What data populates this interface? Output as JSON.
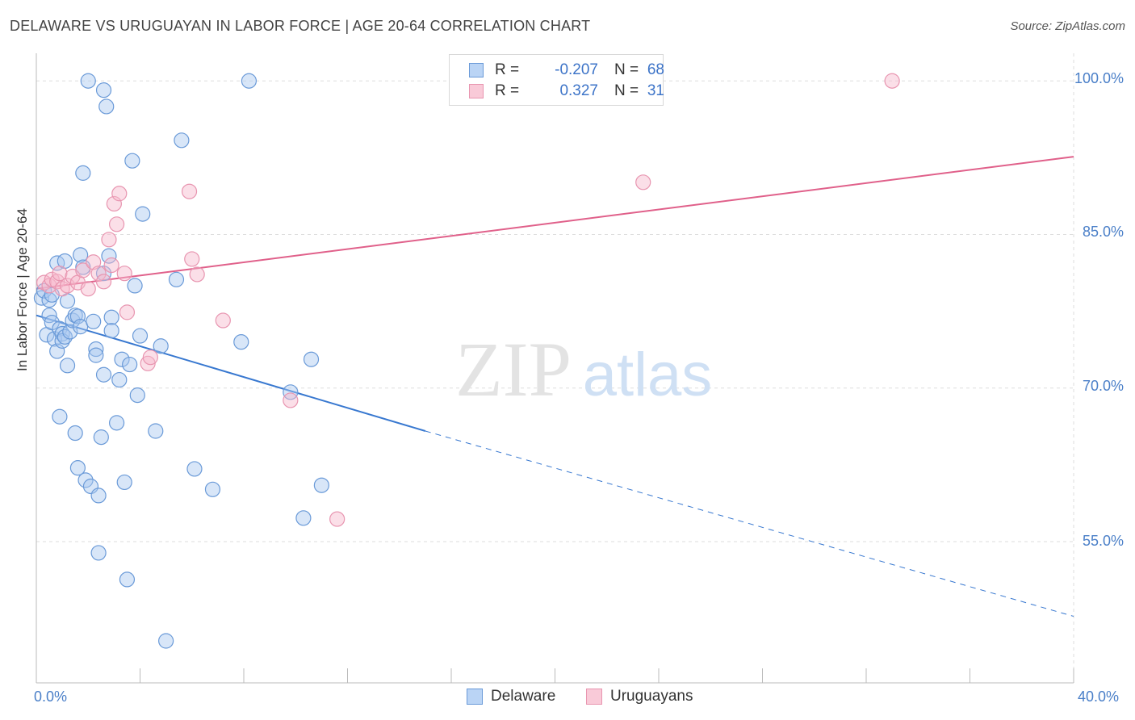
{
  "title": "DELAWARE VS URUGUAYAN IN LABOR FORCE | AGE 20-64 CORRELATION CHART",
  "source": "Source: ZipAtlas.com",
  "watermark": {
    "zip": "ZIP",
    "atlas": "atlas"
  },
  "colors": {
    "delaware_fill": "#a9c8f0",
    "delaware_stroke": "#6a9ad8",
    "delaware_line": "#3878d0",
    "uruguayan_fill": "#f7b8cc",
    "uruguayan_stroke": "#e895b0",
    "uruguayan_line": "#e0608a",
    "tick_text": "#4a7fc8",
    "grid": "#dddddd"
  },
  "stats": {
    "delaware": {
      "r_label": "R =",
      "r_value": "-0.207",
      "n_label": "N =",
      "n_value": "68"
    },
    "uruguayan": {
      "r_label": "R =",
      "r_value": "0.327",
      "n_label": "N =",
      "n_value": "31"
    }
  },
  "chart_data": {
    "type": "scatter",
    "title": "DELAWARE VS URUGUAYAN IN LABOR FORCE | AGE 20-64 CORRELATION CHART",
    "xlabel": "",
    "ylabel": "In Labor Force | Age 20-64",
    "xlim": [
      0,
      40
    ],
    "ylim": [
      41.2,
      102.7
    ],
    "x_tick_labels": [
      "0.0%",
      "40.0%"
    ],
    "y_ticks": [
      55,
      70,
      85,
      100
    ],
    "y_tick_labels": [
      "55.0%",
      "70.0%",
      "85.0%",
      "100.0%"
    ],
    "grid": true,
    "legend_position": "bottom-center",
    "series": [
      {
        "name": "Delaware",
        "points": [
          [
            0.2,
            78.8
          ],
          [
            0.3,
            79.5
          ],
          [
            0.4,
            75.2
          ],
          [
            0.5,
            78.6
          ],
          [
            0.5,
            77.1
          ],
          [
            0.6,
            79.1
          ],
          [
            0.6,
            76.4
          ],
          [
            0.7,
            74.8
          ],
          [
            0.8,
            82.2
          ],
          [
            0.8,
            73.6
          ],
          [
            0.9,
            75.8
          ],
          [
            0.9,
            67.2
          ],
          [
            1.0,
            75.3
          ],
          [
            1.0,
            74.6
          ],
          [
            1.1,
            75.0
          ],
          [
            1.1,
            82.4
          ],
          [
            1.2,
            78.5
          ],
          [
            1.2,
            72.2
          ],
          [
            1.3,
            75.5
          ],
          [
            1.4,
            76.6
          ],
          [
            1.5,
            77.1
          ],
          [
            1.5,
            65.6
          ],
          [
            1.6,
            62.2
          ],
          [
            1.6,
            77.0
          ],
          [
            1.7,
            76.0
          ],
          [
            1.7,
            83.0
          ],
          [
            1.8,
            81.8
          ],
          [
            1.8,
            91.0
          ],
          [
            1.9,
            61.0
          ],
          [
            2.0,
            100.0
          ],
          [
            2.1,
            60.4
          ],
          [
            2.2,
            76.5
          ],
          [
            2.3,
            73.8
          ],
          [
            2.3,
            73.2
          ],
          [
            2.4,
            59.5
          ],
          [
            2.4,
            53.9
          ],
          [
            2.5,
            65.2
          ],
          [
            2.6,
            71.3
          ],
          [
            2.6,
            99.1
          ],
          [
            2.6,
            81.2
          ],
          [
            2.7,
            97.5
          ],
          [
            2.8,
            82.9
          ],
          [
            2.9,
            76.9
          ],
          [
            2.9,
            75.6
          ],
          [
            3.1,
            66.6
          ],
          [
            3.2,
            70.8
          ],
          [
            3.3,
            72.8
          ],
          [
            3.4,
            60.8
          ],
          [
            3.5,
            51.3
          ],
          [
            3.6,
            72.3
          ],
          [
            3.7,
            92.2
          ],
          [
            3.8,
            80.0
          ],
          [
            3.9,
            69.3
          ],
          [
            4.0,
            75.1
          ],
          [
            4.1,
            87.0
          ],
          [
            4.6,
            65.8
          ],
          [
            4.8,
            74.1
          ],
          [
            5.0,
            45.3
          ],
          [
            5.4,
            80.6
          ],
          [
            5.6,
            94.2
          ],
          [
            6.1,
            62.1
          ],
          [
            6.8,
            60.1
          ],
          [
            7.9,
            74.5
          ],
          [
            8.2,
            100.0
          ],
          [
            9.8,
            69.6
          ],
          [
            10.3,
            57.3
          ],
          [
            10.6,
            72.8
          ],
          [
            11.0,
            60.5
          ]
        ]
      },
      {
        "name": "Uruguayans",
        "points": [
          [
            0.3,
            80.3
          ],
          [
            0.5,
            80.0
          ],
          [
            0.6,
            80.6
          ],
          [
            0.8,
            80.4
          ],
          [
            0.9,
            81.2
          ],
          [
            1.0,
            79.7
          ],
          [
            1.2,
            80.0
          ],
          [
            1.4,
            80.9
          ],
          [
            1.6,
            80.3
          ],
          [
            1.8,
            81.5
          ],
          [
            2.0,
            79.7
          ],
          [
            2.2,
            82.3
          ],
          [
            2.4,
            81.2
          ],
          [
            2.6,
            80.4
          ],
          [
            2.8,
            84.5
          ],
          [
            2.9,
            82.0
          ],
          [
            3.0,
            88.0
          ],
          [
            3.1,
            86.0
          ],
          [
            3.2,
            89.0
          ],
          [
            3.4,
            81.2
          ],
          [
            3.5,
            77.4
          ],
          [
            4.3,
            72.4
          ],
          [
            4.4,
            73.0
          ],
          [
            5.9,
            89.2
          ],
          [
            6.0,
            82.6
          ],
          [
            6.2,
            81.1
          ],
          [
            7.2,
            76.6
          ],
          [
            9.8,
            68.8
          ],
          [
            11.6,
            57.2
          ],
          [
            23.4,
            90.1
          ],
          [
            33.0,
            100.0
          ]
        ]
      }
    ],
    "trend_lines": [
      {
        "name": "Delaware",
        "x0": 0,
        "y0": 77.1,
        "x1": 15.0,
        "y1": 65.8,
        "dashed_to_x": 40,
        "dashed_to_y": 47.7
      },
      {
        "name": "Uruguayans",
        "x0": 0,
        "y0": 79.7,
        "x1": 40,
        "y1": 92.6
      }
    ]
  }
}
